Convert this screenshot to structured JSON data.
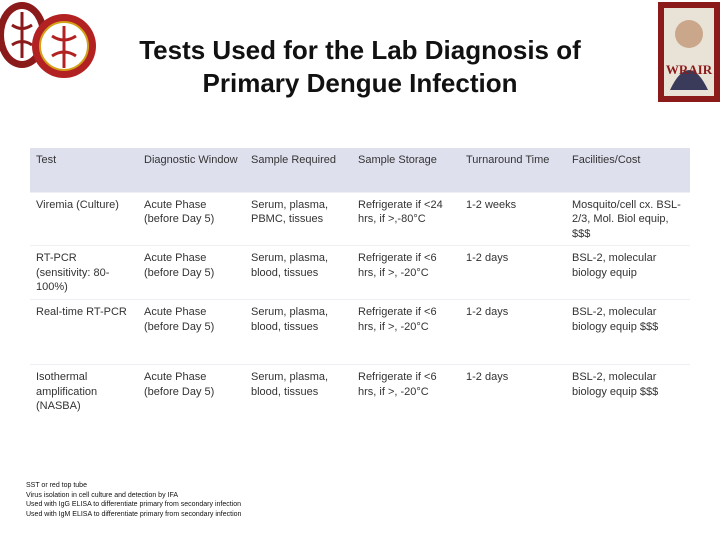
{
  "header": {
    "title": "Tests Used for the Lab Diagnosis of Primary Dengue Infection"
  },
  "logos": {
    "right": "WRAIR"
  },
  "table": {
    "columns": [
      "Test",
      "Diagnostic Window",
      "Sample Required",
      "Sample Storage",
      "Turnaround Time",
      "Facilities/Cost"
    ],
    "rows": [
      [
        "Viremia (Culture)",
        "Acute Phase (before Day 5)",
        "Serum, plasma, PBMC, tissues",
        "Refrigerate if <24 hrs, if >,-80°C",
        "1-2 weeks",
        "Mosquito/cell cx. BSL-2/3, Mol. Biol equip, $$$"
      ],
      [
        "RT-PCR (sensitivity: 80-100%)",
        "Acute Phase (before Day 5)",
        "Serum, plasma, blood, tissues",
        "Refrigerate if <6 hrs, if >, -20°C",
        "1-2 days",
        "BSL-2, molecular biology equip"
      ],
      [
        "Real-time RT-PCR",
        "Acute Phase (before Day 5)",
        "Serum, plasma, blood, tissues",
        "Refrigerate if <6 hrs, if >, -20°C",
        "1-2 days",
        "BSL-2, molecular biology equip $$$"
      ],
      [
        "Isothermal amplification (NASBA)",
        "Acute Phase (before Day 5)",
        "Serum, plasma, blood, tissues",
        "Refrigerate if <6 hrs, if >, -20°C",
        "1-2 days",
        "BSL-2, molecular biology equip $$$"
      ]
    ]
  },
  "footnotes": [
    "SST or red top tube",
    "Virus isolation in cell culture and detection by IFA",
    "Used with IgG ELISA to differentiate primary from secondary infection",
    "Used with IgM ELISA to differentiate primary from secondary infection"
  ]
}
